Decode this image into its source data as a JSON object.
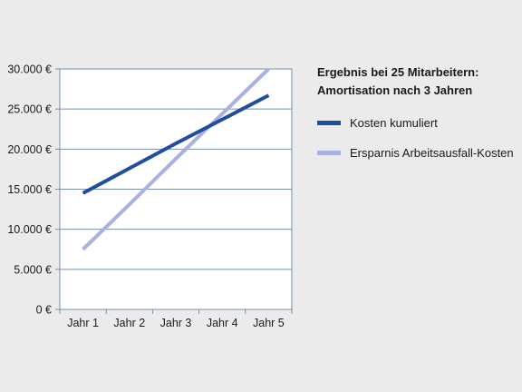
{
  "chart_data": {
    "type": "line",
    "title_lines": [
      "Ergebnis bei 25 Mitarbeitern:",
      "Amortisation nach 3 Jahren"
    ],
    "categories": [
      "Jahr 1",
      "Jahr 2",
      "Jahr 3",
      "Jahr 4",
      "Jahr 5"
    ],
    "y_ticks": [
      "0 €",
      "5.000 €",
      "10.000 €",
      "15.000 €",
      "20.000 €",
      "25.000 €",
      "30.000 €"
    ],
    "ylim": [
      0,
      30000
    ],
    "grid": true,
    "legend_position": "right",
    "series": [
      {
        "name": "Kosten kumuliert",
        "color": "#1f4e9c",
        "values": [
          14500,
          17600,
          20700,
          23700,
          26700
        ]
      },
      {
        "name": "Ersparnis Arbeitsausfall-Kosten",
        "color": "#a9b1e0",
        "values": [
          7500,
          13100,
          18800,
          24400,
          30000
        ]
      }
    ]
  }
}
